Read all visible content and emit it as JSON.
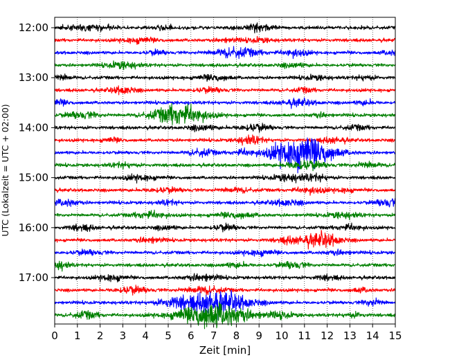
{
  "chart_data": {
    "type": "line",
    "title": "",
    "xlabel": "Zeit  [min]",
    "ylabel": "UTC (Lokalzeit = UTC + 02:00)",
    "xlim": [
      0,
      15
    ],
    "x_ticks": [
      0,
      1,
      2,
      3,
      4,
      5,
      6,
      7,
      8,
      9,
      10,
      11,
      12,
      13,
      14,
      15
    ],
    "y_tick_labels": [
      "12:00",
      "13:00",
      "14:00",
      "15:00",
      "16:00",
      "17:00"
    ],
    "y_tick_rows": [
      0,
      4,
      8,
      12,
      16,
      20
    ],
    "grid_x": true,
    "grid_style": "dotted",
    "legend": "none",
    "colors": [
      "#000000",
      "#ff0000",
      "#0000ff",
      "#008000"
    ],
    "trace_interval_minutes": 15,
    "traces": [
      {
        "start": "12:00",
        "color": "#000000",
        "bursts": [
          [
            1.5,
            0.6,
            0.4
          ],
          [
            9.0,
            0.5,
            0.4
          ],
          [
            4.8,
            0.3,
            0.2
          ]
        ]
      },
      {
        "start": "12:15",
        "color": "#ff0000",
        "bursts": [
          [
            3.7,
            0.5,
            0.4
          ],
          [
            9.0,
            0.4,
            0.3
          ],
          [
            7.6,
            0.4,
            0.25
          ]
        ]
      },
      {
        "start": "12:30",
        "color": "#0000ff",
        "bursts": [
          [
            8.0,
            0.7,
            0.7
          ],
          [
            10.6,
            0.4,
            0.5
          ],
          [
            4.5,
            0.3,
            0.3
          ],
          [
            14.8,
            0.3,
            0.3
          ]
        ]
      },
      {
        "start": "12:45",
        "color": "#008000",
        "bursts": [
          [
            3.0,
            0.5,
            0.5
          ],
          [
            10.5,
            0.4,
            0.3
          ]
        ]
      },
      {
        "start": "13:00",
        "color": "#000000",
        "bursts": [
          [
            0.3,
            0.3,
            0.4
          ],
          [
            7.0,
            0.5,
            0.4
          ],
          [
            11.5,
            0.4,
            0.3
          ],
          [
            13.7,
            0.3,
            0.3
          ]
        ]
      },
      {
        "start": "13:15",
        "color": "#ff0000",
        "bursts": [
          [
            3.0,
            0.4,
            0.5
          ],
          [
            6.8,
            0.5,
            0.3
          ],
          [
            11.0,
            0.3,
            0.3
          ]
        ]
      },
      {
        "start": "13:30",
        "color": "#0000ff",
        "bursts": [
          [
            0.2,
            0.3,
            0.4
          ],
          [
            10.7,
            0.5,
            0.5
          ],
          [
            13.7,
            0.3,
            0.3
          ]
        ]
      },
      {
        "start": "13:45",
        "color": "#008000",
        "bursts": [
          [
            1.2,
            0.5,
            0.5
          ],
          [
            5.5,
            0.8,
            1.6
          ],
          [
            11.7,
            0.3,
            0.3
          ]
        ]
      },
      {
        "start": "14:00",
        "color": "#000000",
        "bursts": [
          [
            6.5,
            0.4,
            0.4
          ],
          [
            8.8,
            0.5,
            0.5
          ],
          [
            13.3,
            0.4,
            0.3
          ]
        ]
      },
      {
        "start": "14:15",
        "color": "#ff0000",
        "bursts": [
          [
            8.6,
            0.4,
            0.6
          ],
          [
            12.3,
            0.4,
            0.4
          ],
          [
            2.5,
            0.3,
            0.3
          ]
        ]
      },
      {
        "start": "14:30",
        "color": "#0000ff",
        "bursts": [
          [
            10.9,
            0.9,
            2.8
          ],
          [
            6.5,
            0.4,
            0.5
          ],
          [
            8.3,
            0.3,
            0.4
          ]
        ]
      },
      {
        "start": "14:45",
        "color": "#008000",
        "bursts": [
          [
            11.0,
            0.6,
            0.7
          ],
          [
            3.0,
            0.4,
            0.3
          ],
          [
            13.8,
            0.4,
            0.4
          ]
        ]
      },
      {
        "start": "15:00",
        "color": "#000000",
        "bursts": [
          [
            10.3,
            0.5,
            0.5
          ],
          [
            3.8,
            0.5,
            0.4
          ],
          [
            11.5,
            0.4,
            0.4
          ]
        ]
      },
      {
        "start": "15:15",
        "color": "#ff0000",
        "bursts": [
          [
            4.8,
            0.6,
            0.3
          ],
          [
            11.3,
            0.5,
            0.4
          ],
          [
            8.0,
            0.5,
            0.3
          ],
          [
            12.8,
            0.3,
            0.3
          ]
        ]
      },
      {
        "start": "15:30",
        "color": "#0000ff",
        "bursts": [
          [
            0.5,
            0.4,
            0.5
          ],
          [
            14.7,
            0.4,
            0.6
          ],
          [
            10.2,
            0.5,
            0.4
          ],
          [
            5.0,
            0.3,
            0.3
          ]
        ]
      },
      {
        "start": "15:45",
        "color": "#008000",
        "bursts": [
          [
            4.2,
            0.5,
            0.5
          ],
          [
            8.0,
            0.6,
            0.4
          ],
          [
            12.7,
            0.5,
            0.4
          ]
        ]
      },
      {
        "start": "16:00",
        "color": "#000000",
        "bursts": [
          [
            1.2,
            0.4,
            0.4
          ],
          [
            7.5,
            0.4,
            0.4
          ],
          [
            13.0,
            0.4,
            0.4
          ],
          [
            4.9,
            0.3,
            0.3
          ]
        ]
      },
      {
        "start": "16:15",
        "color": "#ff0000",
        "bursts": [
          [
            11.7,
            0.6,
            1.1
          ],
          [
            4.2,
            0.4,
            0.4
          ],
          [
            10.3,
            0.4,
            0.4
          ]
        ]
      },
      {
        "start": "16:30",
        "color": "#0000ff",
        "bursts": [
          [
            1.5,
            0.5,
            0.3
          ],
          [
            9.0,
            0.5,
            0.4
          ],
          [
            12.5,
            0.4,
            0.3
          ]
        ]
      },
      {
        "start": "16:45",
        "color": "#008000",
        "bursts": [
          [
            0.2,
            0.3,
            0.6
          ],
          [
            10.5,
            0.4,
            0.5
          ],
          [
            8.0,
            0.4,
            0.3
          ]
        ]
      },
      {
        "start": "17:00",
        "color": "#000000",
        "bursts": [
          [
            2.5,
            0.4,
            0.5
          ],
          [
            6.5,
            0.5,
            0.5
          ],
          [
            12.0,
            0.4,
            0.3
          ]
        ]
      },
      {
        "start": "17:15",
        "color": "#ff0000",
        "bursts": [
          [
            3.4,
            0.5,
            0.5
          ],
          [
            6.6,
            0.6,
            0.5
          ],
          [
            13.5,
            0.3,
            0.3
          ]
        ]
      },
      {
        "start": "17:30",
        "color": "#0000ff",
        "bursts": [
          [
            7.1,
            1.0,
            1.8
          ],
          [
            5.2,
            0.5,
            0.5
          ],
          [
            14.0,
            0.3,
            0.5
          ]
        ]
      },
      {
        "start": "17:45",
        "color": "#008000",
        "bursts": [
          [
            7.0,
            1.1,
            2.0
          ],
          [
            1.4,
            0.4,
            0.5
          ],
          [
            10.0,
            0.4,
            0.4
          ],
          [
            13.2,
            0.3,
            0.3
          ]
        ]
      }
    ]
  }
}
